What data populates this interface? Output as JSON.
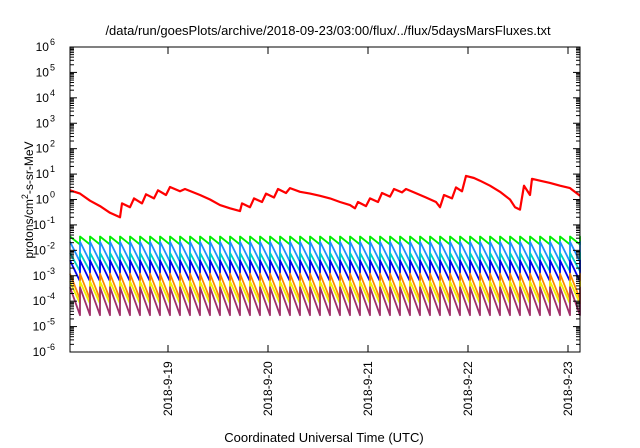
{
  "chart_data": {
    "type": "line",
    "title": "/data/run/goesPlots/archive/2018-09-23/03:00/flux/../flux/5daysMarsFluxes.txt",
    "xlabel": "Coordinated Universal Time (UTC)",
    "ylabel_base": "protons/cm",
    "ylabel_sup": "2",
    "ylabel_rest": "-s-sr-MeV",
    "yscale": "log",
    "ylim_exp": [
      -6,
      6
    ],
    "y_tick_base": "10",
    "y_ticks_exp": [
      "-6",
      "-5",
      "-4",
      "-3",
      "-2",
      "-1",
      "0",
      "1",
      "2",
      "3",
      "4",
      "5",
      "6"
    ],
    "x_range_days": [
      0,
      5.1
    ],
    "x_ticks": [
      {
        "day": 0.98,
        "label": "2018-9-19"
      },
      {
        "day": 1.98,
        "label": "2018-9-20"
      },
      {
        "day": 2.98,
        "label": "2018-9-21"
      },
      {
        "day": 3.98,
        "label": "2018-9-22"
      },
      {
        "day": 4.98,
        "label": "2018-9-23"
      }
    ],
    "grid": false,
    "legend": "none",
    "series": [
      {
        "color": "#ff0000",
        "points": [
          [
            0,
            2.3
          ],
          [
            0.1,
            1.7
          ],
          [
            0.2,
            0.9
          ],
          [
            0.3,
            0.55
          ],
          [
            0.4,
            0.3
          ],
          [
            0.5,
            0.2
          ],
          [
            0.52,
            0.7
          ],
          [
            0.6,
            0.5
          ],
          [
            0.64,
            1.1
          ],
          [
            0.72,
            0.7
          ],
          [
            0.76,
            1.6
          ],
          [
            0.84,
            1.1
          ],
          [
            0.88,
            2.3
          ],
          [
            0.96,
            1.5
          ],
          [
            1.0,
            3.1
          ],
          [
            1.1,
            2.1
          ],
          [
            1.15,
            2.6
          ],
          [
            1.3,
            1.5
          ],
          [
            1.4,
            1.0
          ],
          [
            1.5,
            0.6
          ],
          [
            1.6,
            0.45
          ],
          [
            1.7,
            0.35
          ],
          [
            1.72,
            0.7
          ],
          [
            1.8,
            0.5
          ],
          [
            1.84,
            1.1
          ],
          [
            1.92,
            0.8
          ],
          [
            1.96,
            1.7
          ],
          [
            2.04,
            1.2
          ],
          [
            2.08,
            2.6
          ],
          [
            2.16,
            1.8
          ],
          [
            2.2,
            2.8
          ],
          [
            2.3,
            2.0
          ],
          [
            2.4,
            1.7
          ],
          [
            2.5,
            1.4
          ],
          [
            2.6,
            1.1
          ],
          [
            2.7,
            0.8
          ],
          [
            2.8,
            0.6
          ],
          [
            2.85,
            0.45
          ],
          [
            2.88,
            0.8
          ],
          [
            2.96,
            0.55
          ],
          [
            3.0,
            1.1
          ],
          [
            3.08,
            0.8
          ],
          [
            3.12,
            1.8
          ],
          [
            3.2,
            1.3
          ],
          [
            3.24,
            2.6
          ],
          [
            3.32,
            1.9
          ],
          [
            3.36,
            2.6
          ],
          [
            3.44,
            1.9
          ],
          [
            3.56,
            1.2
          ],
          [
            3.66,
            0.8
          ],
          [
            3.7,
            0.5
          ],
          [
            3.74,
            1.5
          ],
          [
            3.82,
            1.1
          ],
          [
            3.86,
            3.0
          ],
          [
            3.92,
            2.1
          ],
          [
            3.96,
            8.5
          ],
          [
            4.04,
            7.0
          ],
          [
            4.1,
            5.5
          ],
          [
            4.2,
            3.5
          ],
          [
            4.3,
            2.0
          ],
          [
            4.4,
            1.0
          ],
          [
            4.45,
            0.5
          ],
          [
            4.5,
            0.4
          ],
          [
            4.54,
            3.5
          ],
          [
            4.6,
            1.5
          ],
          [
            4.62,
            6.5
          ],
          [
            4.7,
            5.5
          ],
          [
            4.8,
            4.5
          ],
          [
            4.9,
            3.5
          ],
          [
            5.0,
            2.8
          ],
          [
            5.1,
            1.4
          ]
        ]
      },
      {
        "color": "#00ee00",
        "period": 0.1,
        "peak": 0.035,
        "trough": 0.017
      },
      {
        "color": "#1e90ff",
        "period": 0.1,
        "peak": 0.022,
        "trough": 0.0035
      },
      {
        "color": "#00d0c0",
        "period": 0.1,
        "peak": 0.008,
        "trough": 0.0015
      },
      {
        "color": "#0000ee",
        "period": 0.1,
        "peak": 0.004,
        "trough": 0.0006
      },
      {
        "color": "#ff8c00",
        "period": 0.1,
        "peak": 0.0012,
        "trough": 0.00012
      },
      {
        "color": "#f0f000",
        "period": 0.1,
        "peak": 0.0006,
        "trough": 8e-05
      },
      {
        "color": "#a0306a",
        "period": 0.1,
        "peak": 0.00035,
        "trough": 2.8e-05
      }
    ]
  }
}
